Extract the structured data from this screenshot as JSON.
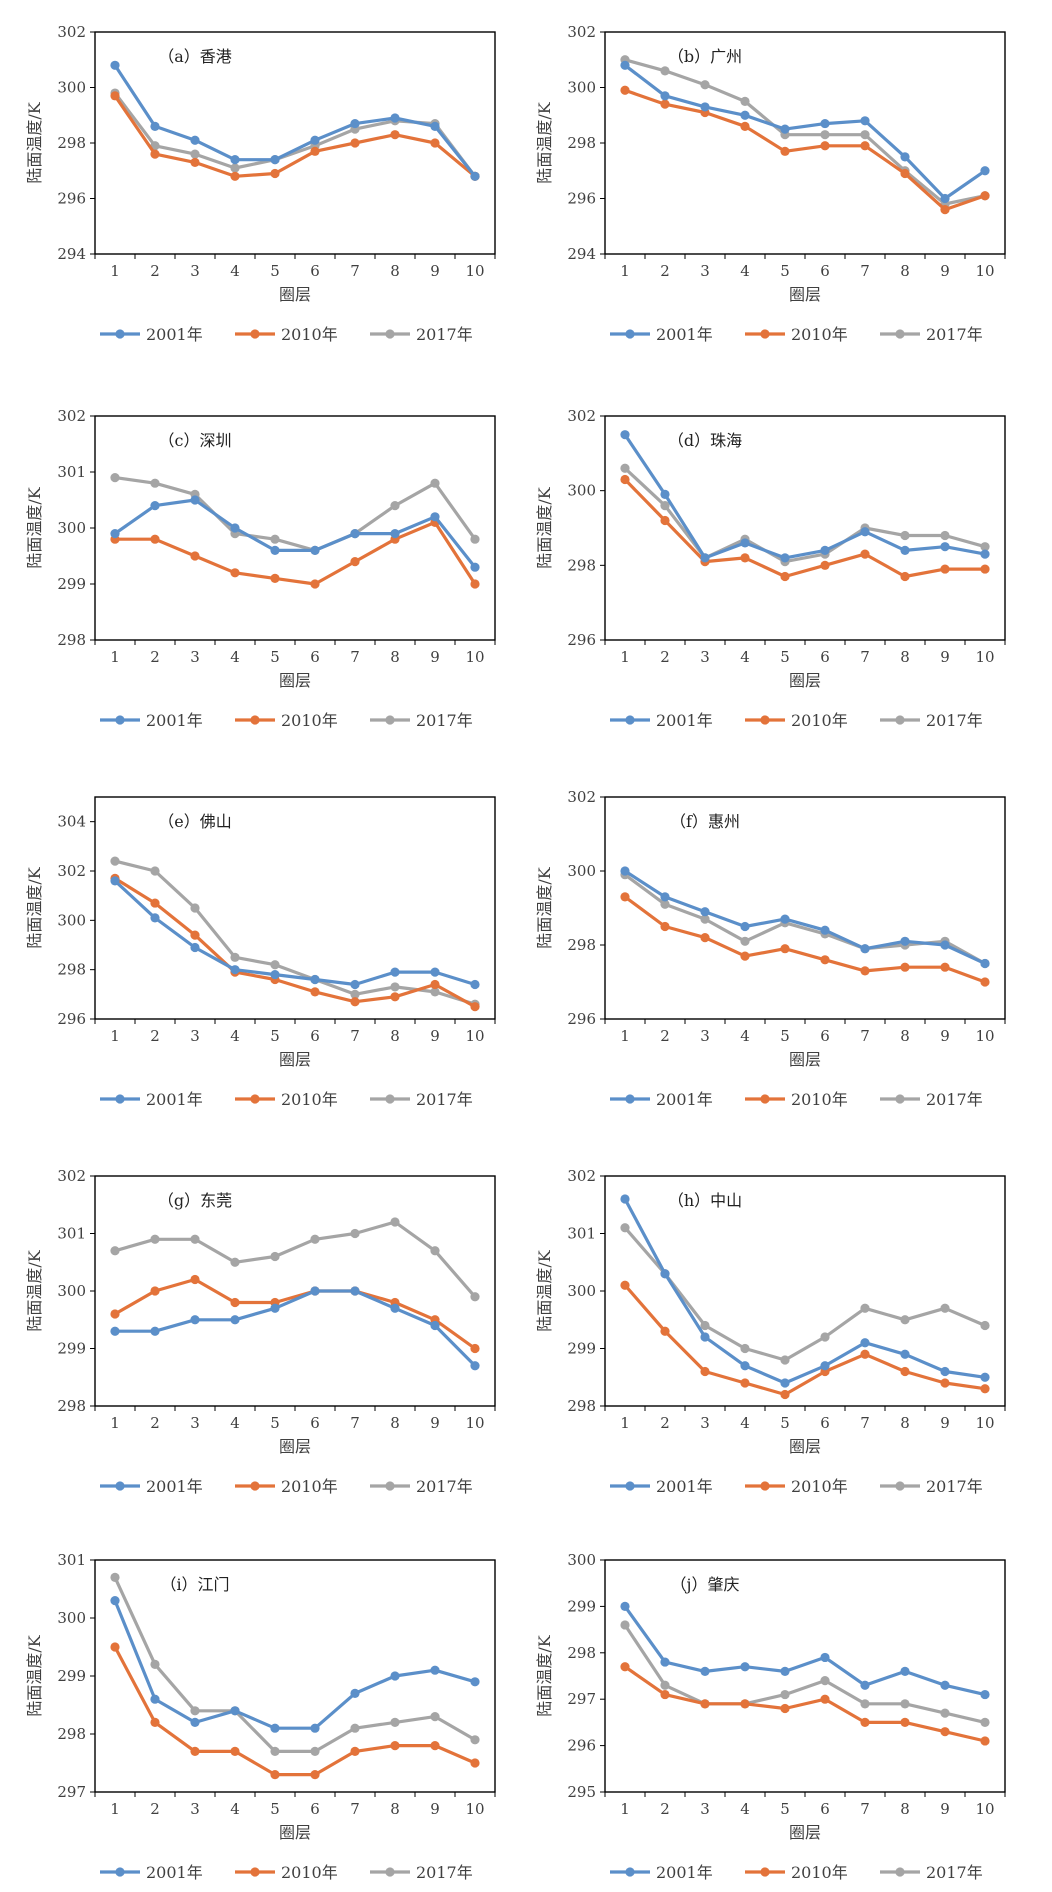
{
  "figure": {
    "legend_suffix": "年",
    "colors": {
      "2001": "#5b8fc9",
      "2010": "#e3733a",
      "2017": "#a5a5a5"
    }
  },
  "chart_data": [
    {
      "type": "line",
      "title": "（a）香港",
      "xlabel": "圈层",
      "ylabel": "陆面温度/K",
      "x": [
        1,
        2,
        3,
        4,
        5,
        6,
        7,
        8,
        9,
        10
      ],
      "ylim": [
        294,
        302
      ],
      "yticks": [
        294,
        296,
        298,
        300,
        302
      ],
      "grid": false,
      "legend_position": "bottom",
      "series": [
        {
          "name": "2001年",
          "values": [
            300.8,
            298.6,
            298.1,
            297.4,
            297.4,
            298.1,
            298.7,
            298.9,
            298.6,
            296.8
          ]
        },
        {
          "name": "2010年",
          "values": [
            299.7,
            297.6,
            297.3,
            296.8,
            296.9,
            297.7,
            298.0,
            298.3,
            298.0,
            296.8
          ]
        },
        {
          "name": "2017年",
          "values": [
            299.8,
            297.9,
            297.6,
            297.1,
            297.4,
            297.9,
            298.5,
            298.8,
            298.7,
            296.8
          ]
        }
      ]
    },
    {
      "type": "line",
      "title": "（b）广州",
      "xlabel": "圈层",
      "ylabel": "陆面温度/K",
      "x": [
        1,
        2,
        3,
        4,
        5,
        6,
        7,
        8,
        9,
        10
      ],
      "ylim": [
        294,
        302
      ],
      "yticks": [
        294,
        296,
        298,
        300,
        302
      ],
      "grid": false,
      "legend_position": "bottom",
      "series": [
        {
          "name": "2001年",
          "values": [
            300.8,
            299.7,
            299.3,
            299.0,
            298.5,
            298.7,
            298.8,
            297.5,
            296.0,
            297.0
          ]
        },
        {
          "name": "2010年",
          "values": [
            299.9,
            299.4,
            299.1,
            298.6,
            297.7,
            297.9,
            297.9,
            296.9,
            295.6,
            296.1
          ]
        },
        {
          "name": "2017年",
          "values": [
            301.0,
            300.6,
            300.1,
            299.5,
            298.3,
            298.3,
            298.3,
            297.0,
            295.8,
            296.1
          ]
        }
      ]
    },
    {
      "type": "line",
      "title": "（c）深圳",
      "xlabel": "圈层",
      "ylabel": "陆面温度/K",
      "x": [
        1,
        2,
        3,
        4,
        5,
        6,
        7,
        8,
        9,
        10
      ],
      "ylim": [
        298,
        302
      ],
      "yticks": [
        298,
        299,
        300,
        301,
        302
      ],
      "grid": false,
      "legend_position": "bottom",
      "series": [
        {
          "name": "2001年",
          "values": [
            299.9,
            300.4,
            300.5,
            300.0,
            299.6,
            299.6,
            299.9,
            299.9,
            300.2,
            299.3
          ]
        },
        {
          "name": "2010年",
          "values": [
            299.8,
            299.8,
            299.5,
            299.2,
            299.1,
            299.0,
            299.4,
            299.8,
            300.1,
            299.0
          ]
        },
        {
          "name": "2017年",
          "values": [
            300.9,
            300.8,
            300.6,
            299.9,
            299.8,
            299.6,
            299.9,
            300.4,
            300.8,
            299.8
          ]
        }
      ]
    },
    {
      "type": "line",
      "title": "（d）珠海",
      "xlabel": "圈层",
      "ylabel": "陆面温度/K",
      "x": [
        1,
        2,
        3,
        4,
        5,
        6,
        7,
        8,
        9,
        10
      ],
      "ylim": [
        296,
        302
      ],
      "yticks": [
        296,
        298,
        300,
        302
      ],
      "grid": false,
      "legend_position": "bottom",
      "series": [
        {
          "name": "2001年",
          "values": [
            301.5,
            299.9,
            298.2,
            298.6,
            298.2,
            298.4,
            298.9,
            298.4,
            298.5,
            298.3
          ]
        },
        {
          "name": "2010年",
          "values": [
            300.3,
            299.2,
            298.1,
            298.2,
            297.7,
            298.0,
            298.3,
            297.7,
            297.9,
            297.9
          ]
        },
        {
          "name": "2017年",
          "values": [
            300.6,
            299.6,
            298.2,
            298.7,
            298.1,
            298.3,
            299.0,
            298.8,
            298.8,
            298.5
          ]
        }
      ]
    },
    {
      "type": "line",
      "title": "（e）佛山",
      "xlabel": "圈层",
      "ylabel": "陆面温度/K",
      "x": [
        1,
        2,
        3,
        4,
        5,
        6,
        7,
        8,
        9,
        10
      ],
      "ylim": [
        296,
        305
      ],
      "yticks": [
        296,
        298,
        300,
        302,
        304
      ],
      "grid": false,
      "legend_position": "bottom",
      "series": [
        {
          "name": "2001年",
          "values": [
            301.6,
            300.1,
            298.9,
            298.0,
            297.8,
            297.6,
            297.4,
            297.9,
            297.9,
            297.4
          ]
        },
        {
          "name": "2010年",
          "values": [
            301.7,
            300.7,
            299.4,
            297.9,
            297.6,
            297.1,
            296.7,
            296.9,
            297.4,
            296.5
          ]
        },
        {
          "name": "2017年",
          "values": [
            302.4,
            302.0,
            300.5,
            298.5,
            298.2,
            297.6,
            297.0,
            297.3,
            297.1,
            296.6
          ]
        }
      ]
    },
    {
      "type": "line",
      "title": "（f）惠州",
      "xlabel": "圈层",
      "ylabel": "陆面温度/K",
      "x": [
        1,
        2,
        3,
        4,
        5,
        6,
        7,
        8,
        9,
        10
      ],
      "ylim": [
        296,
        302
      ],
      "yticks": [
        296,
        298,
        300,
        302
      ],
      "grid": false,
      "legend_position": "bottom",
      "series": [
        {
          "name": "2001年",
          "values": [
            300.0,
            299.3,
            298.9,
            298.5,
            298.7,
            298.4,
            297.9,
            298.1,
            298.0,
            297.5
          ]
        },
        {
          "name": "2010年",
          "values": [
            299.3,
            298.5,
            298.2,
            297.7,
            297.9,
            297.6,
            297.3,
            297.4,
            297.4,
            297.0
          ]
        },
        {
          "name": "2017年",
          "values": [
            299.9,
            299.1,
            298.7,
            298.1,
            298.6,
            298.3,
            297.9,
            298.0,
            298.1,
            297.5
          ]
        }
      ]
    },
    {
      "type": "line",
      "title": "（g）东莞",
      "xlabel": "圈层",
      "ylabel": "陆面温度/K",
      "x": [
        1,
        2,
        3,
        4,
        5,
        6,
        7,
        8,
        9,
        10
      ],
      "ylim": [
        298,
        302
      ],
      "yticks": [
        298,
        299,
        300,
        301,
        302
      ],
      "grid": false,
      "legend_position": "bottom",
      "series": [
        {
          "name": "2001年",
          "values": [
            299.3,
            299.3,
            299.5,
            299.5,
            299.7,
            300.0,
            300.0,
            299.7,
            299.4,
            298.7
          ]
        },
        {
          "name": "2010年",
          "values": [
            299.6,
            300.0,
            300.2,
            299.8,
            299.8,
            300.0,
            300.0,
            299.8,
            299.5,
            299.0
          ]
        },
        {
          "name": "2017年",
          "values": [
            300.7,
            300.9,
            300.9,
            300.5,
            300.6,
            300.9,
            301.0,
            301.2,
            300.7,
            299.9
          ]
        }
      ]
    },
    {
      "type": "line",
      "title": "（h）中山",
      "xlabel": "圈层",
      "ylabel": "陆面温度/K",
      "x": [
        1,
        2,
        3,
        4,
        5,
        6,
        7,
        8,
        9,
        10
      ],
      "ylim": [
        298,
        302
      ],
      "yticks": [
        298,
        299,
        300,
        301,
        302
      ],
      "grid": false,
      "legend_position": "bottom",
      "series": [
        {
          "name": "2001年",
          "values": [
            301.6,
            300.3,
            299.2,
            298.7,
            298.4,
            298.7,
            299.1,
            298.9,
            298.6,
            298.5
          ]
        },
        {
          "name": "2010年",
          "values": [
            300.1,
            299.3,
            298.6,
            298.4,
            298.2,
            298.6,
            298.9,
            298.6,
            298.4,
            298.3
          ]
        },
        {
          "name": "2017年",
          "values": [
            301.1,
            300.3,
            299.4,
            299.0,
            298.8,
            299.2,
            299.7,
            299.5,
            299.7,
            299.4
          ]
        }
      ]
    },
    {
      "type": "line",
      "title": "（i）江门",
      "xlabel": "圈层",
      "ylabel": "陆面温度/K",
      "x": [
        1,
        2,
        3,
        4,
        5,
        6,
        7,
        8,
        9,
        10
      ],
      "ylim": [
        297,
        301
      ],
      "yticks": [
        297,
        298,
        299,
        300,
        301
      ],
      "grid": false,
      "legend_position": "bottom",
      "series": [
        {
          "name": "2001年",
          "values": [
            300.3,
            298.6,
            298.2,
            298.4,
            298.1,
            298.1,
            298.7,
            299.0,
            299.1,
            298.9
          ]
        },
        {
          "name": "2010年",
          "values": [
            299.5,
            298.2,
            297.7,
            297.7,
            297.3,
            297.3,
            297.7,
            297.8,
            297.8,
            297.5
          ]
        },
        {
          "name": "2017年",
          "values": [
            300.7,
            299.2,
            298.4,
            298.4,
            297.7,
            297.7,
            298.1,
            298.2,
            298.3,
            297.9
          ]
        }
      ]
    },
    {
      "type": "line",
      "title": "（j）肇庆",
      "xlabel": "圈层",
      "ylabel": "陆面温度/K",
      "x": [
        1,
        2,
        3,
        4,
        5,
        6,
        7,
        8,
        9,
        10
      ],
      "ylim": [
        295,
        300
      ],
      "yticks": [
        295,
        296,
        297,
        298,
        299,
        300
      ],
      "grid": false,
      "legend_position": "bottom",
      "series": [
        {
          "name": "2001年",
          "values": [
            299.0,
            297.8,
            297.6,
            297.7,
            297.6,
            297.9,
            297.3,
            297.6,
            297.3,
            297.1
          ]
        },
        {
          "name": "2010年",
          "values": [
            297.7,
            297.1,
            296.9,
            296.9,
            296.8,
            297.0,
            296.5,
            296.5,
            296.3,
            296.1
          ]
        },
        {
          "name": "2017年",
          "values": [
            298.6,
            297.3,
            296.9,
            296.9,
            297.1,
            297.4,
            296.9,
            296.9,
            296.7,
            296.5
          ]
        }
      ]
    }
  ]
}
